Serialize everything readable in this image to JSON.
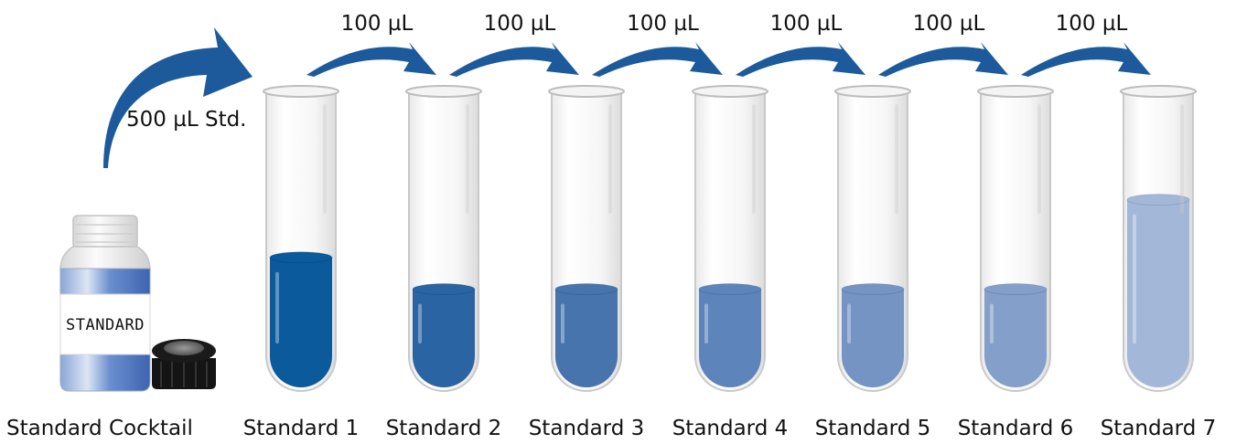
{
  "colors": {
    "arrow": "#1c5a9c",
    "arrow_dark": "#0f3f78",
    "tube_outline": "#c9c9c9",
    "cap": "#151515"
  },
  "stock": {
    "name": "Standard Cocktail",
    "jar_label": "STANDARD",
    "transfer_volume": "500 µL Std."
  },
  "transfers": [
    {
      "volume": "100 µL"
    },
    {
      "volume": "100 µL"
    },
    {
      "volume": "100 µL"
    },
    {
      "volume": "100 µL"
    },
    {
      "volume": "100 µL"
    },
    {
      "volume": "100 µL"
    }
  ],
  "tubes": [
    {
      "name": "Standard 1",
      "fill_fraction": 0.45,
      "color": "#0a5a9c"
    },
    {
      "name": "Standard 2",
      "fill_fraction": 0.34,
      "color": "#2a64a3"
    },
    {
      "name": "Standard 3",
      "fill_fraction": 0.34,
      "color": "#4774ad"
    },
    {
      "name": "Standard 4",
      "fill_fraction": 0.34,
      "color": "#5d85bb"
    },
    {
      "name": "Standard 5",
      "fill_fraction": 0.34,
      "color": "#7594c4"
    },
    {
      "name": "Standard 6",
      "fill_fraction": 0.34,
      "color": "#839fca"
    },
    {
      "name": "Standard 7",
      "fill_fraction": 0.65,
      "color": "#a3b8d9"
    }
  ]
}
